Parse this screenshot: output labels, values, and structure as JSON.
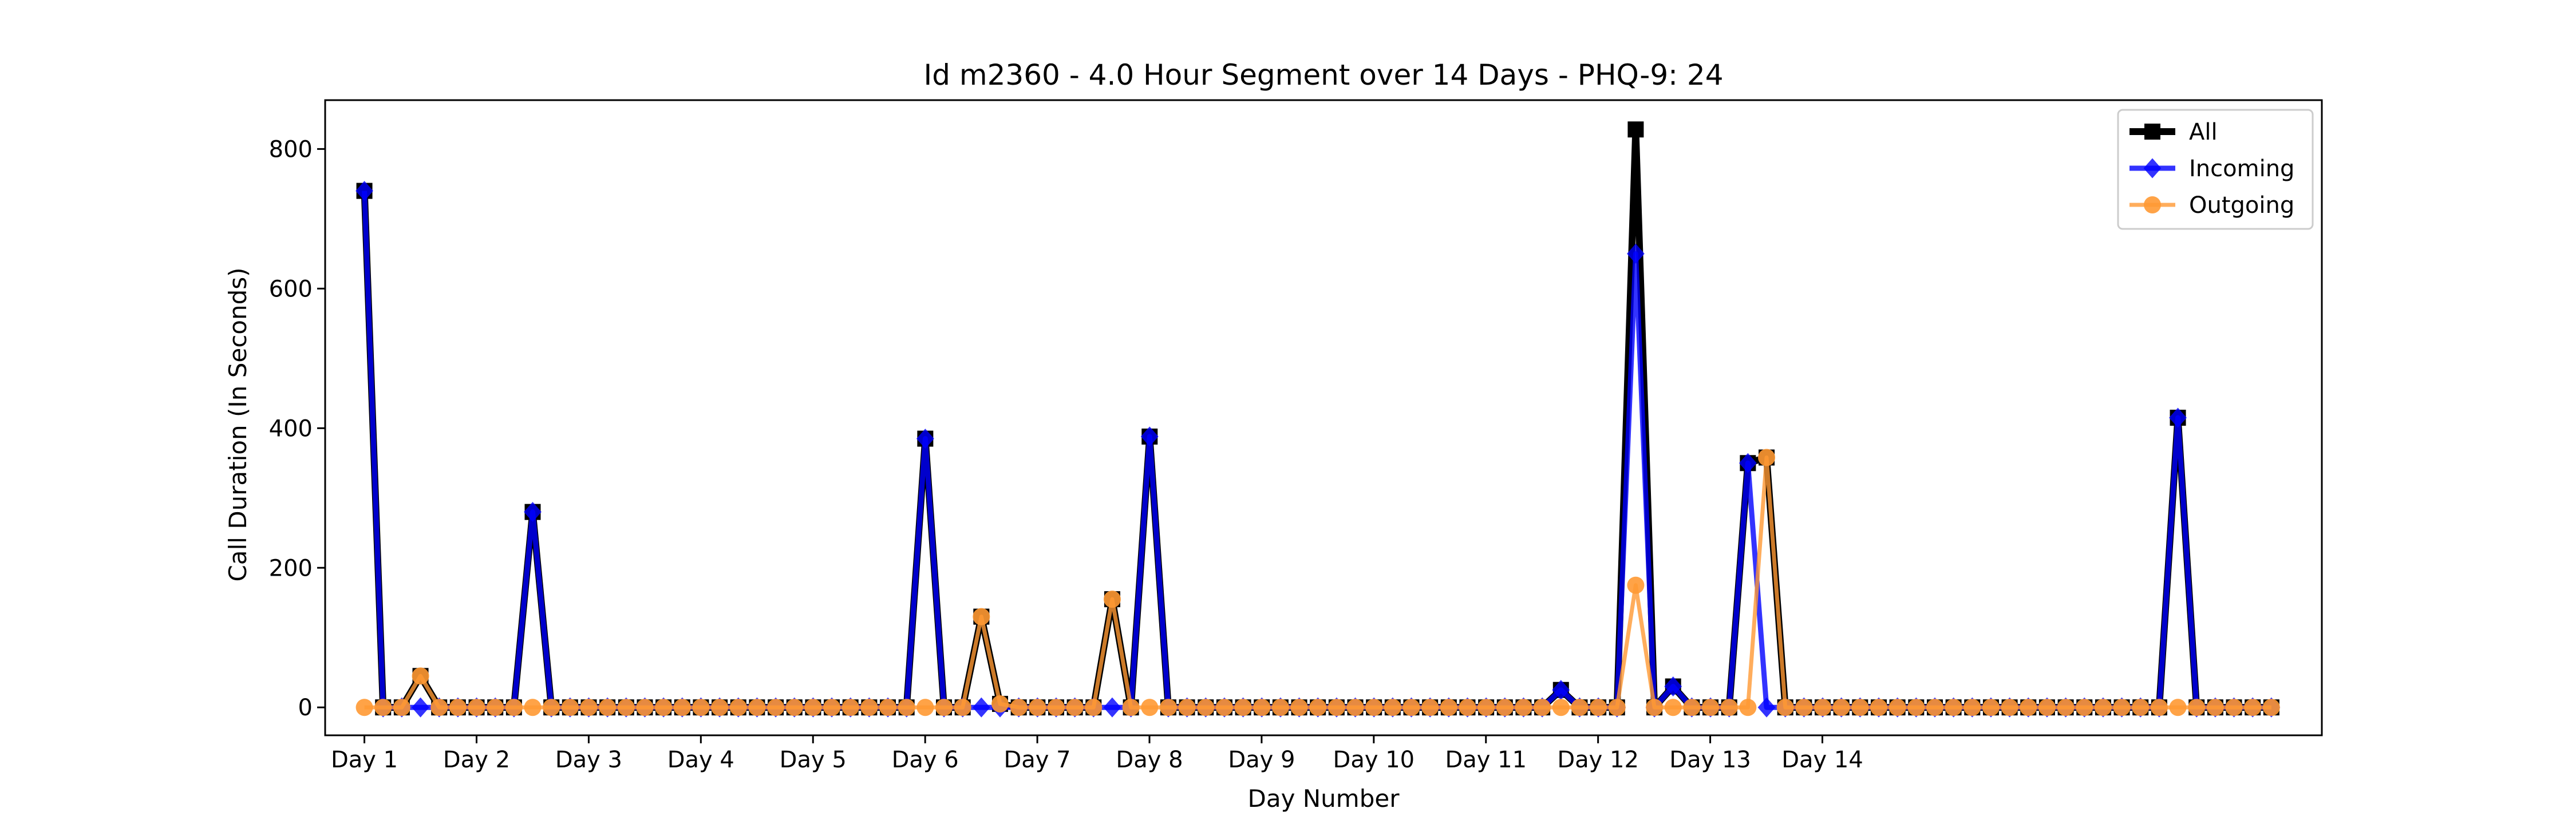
{
  "chart_data": {
    "type": "line",
    "title": "Id m2360 - 4.0 Hour Segment over 14 Days - PHQ-9: 24",
    "xlabel": "Day Number",
    "ylabel": "Call Duration (In Seconds)",
    "ylim": [
      -40,
      870
    ],
    "yticks": [
      0,
      200,
      400,
      600,
      800
    ],
    "xticks": [
      "Day 1",
      "Day 2",
      "Day 3",
      "Day 4",
      "Day 5",
      "Day 6",
      "Day 7",
      "Day 8",
      "Day 9",
      "Day 10",
      "Day 11",
      "Day 12",
      "Day 13",
      "Day 14"
    ],
    "legend_position": "top-right",
    "grid": false,
    "x_step_days": 0.1667,
    "series": [
      {
        "name": "All",
        "color": "#000000",
        "marker": "square",
        "values": [
          740,
          0,
          0,
          45,
          0,
          0,
          0,
          0,
          0,
          280,
          0,
          0,
          0,
          0,
          0,
          0,
          0,
          0,
          0,
          0,
          0,
          0,
          0,
          0,
          0,
          0,
          0,
          0,
          0,
          0,
          385,
          0,
          0,
          130,
          5,
          0,
          0,
          0,
          0,
          0,
          155,
          0,
          388,
          0,
          0,
          0,
          0,
          0,
          0,
          0,
          0,
          0,
          0,
          0,
          0,
          0,
          0,
          0,
          0,
          0,
          0,
          0,
          0,
          0,
          25,
          0,
          0,
          0,
          828,
          0,
          30,
          0,
          0,
          0,
          350,
          358,
          0,
          0,
          0,
          0,
          0,
          0,
          0,
          0,
          0,
          0,
          0,
          0,
          0,
          0,
          0,
          0,
          0,
          0,
          0,
          0,
          0,
          415,
          0,
          0,
          0,
          0,
          0
        ]
      },
      {
        "name": "Incoming",
        "color": "#0000ff",
        "marker": "diamond",
        "values": [
          740,
          0,
          0,
          0,
          0,
          0,
          0,
          0,
          0,
          280,
          0,
          0,
          0,
          0,
          0,
          0,
          0,
          0,
          0,
          0,
          0,
          0,
          0,
          0,
          0,
          0,
          0,
          0,
          0,
          0,
          385,
          0,
          0,
          0,
          0,
          0,
          0,
          0,
          0,
          0,
          0,
          0,
          388,
          0,
          0,
          0,
          0,
          0,
          0,
          0,
          0,
          0,
          0,
          0,
          0,
          0,
          0,
          0,
          0,
          0,
          0,
          0,
          0,
          0,
          25,
          0,
          0,
          0,
          650,
          0,
          30,
          0,
          0,
          0,
          350,
          0,
          0,
          0,
          0,
          0,
          0,
          0,
          0,
          0,
          0,
          0,
          0,
          0,
          0,
          0,
          0,
          0,
          0,
          0,
          0,
          0,
          0,
          415,
          0,
          0,
          0,
          0,
          0
        ]
      },
      {
        "name": "Outgoing",
        "color": "#ff9933",
        "marker": "circle",
        "values": [
          0,
          0,
          0,
          45,
          0,
          0,
          0,
          0,
          0,
          0,
          0,
          0,
          0,
          0,
          0,
          0,
          0,
          0,
          0,
          0,
          0,
          0,
          0,
          0,
          0,
          0,
          0,
          0,
          0,
          0,
          0,
          0,
          0,
          130,
          5,
          0,
          0,
          0,
          0,
          0,
          155,
          0,
          0,
          0,
          0,
          0,
          0,
          0,
          0,
          0,
          0,
          0,
          0,
          0,
          0,
          0,
          0,
          0,
          0,
          0,
          0,
          0,
          0,
          0,
          0,
          0,
          0,
          0,
          175,
          0,
          0,
          0,
          0,
          0,
          0,
          358,
          0,
          0,
          0,
          0,
          0,
          0,
          0,
          0,
          0,
          0,
          0,
          0,
          0,
          0,
          0,
          0,
          0,
          0,
          0,
          0,
          0,
          0,
          0,
          0,
          0,
          0,
          0
        ]
      }
    ]
  }
}
